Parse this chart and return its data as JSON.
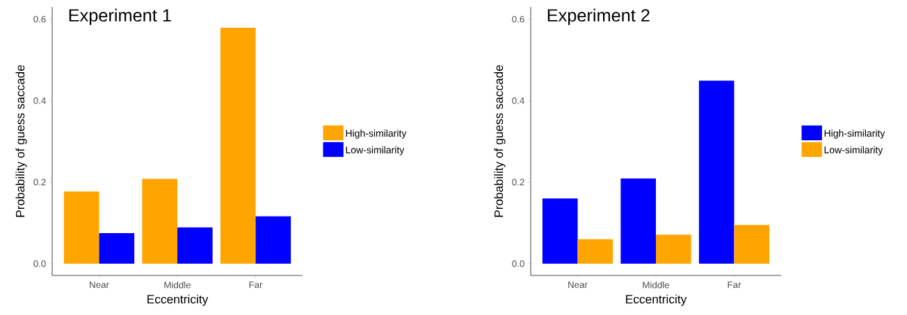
{
  "chart_data": [
    {
      "type": "bar",
      "title": "Experiment 1",
      "xlabel": "Eccentricity",
      "ylabel": "Probability of guess saccade",
      "categories": [
        "Near",
        "Middle",
        "Far"
      ],
      "series": [
        {
          "name": "High-similarity",
          "color": "#ffa500",
          "values": [
            0.177,
            0.208,
            0.579
          ]
        },
        {
          "name": "Low-similarity",
          "color": "#0000ff",
          "values": [
            0.075,
            0.089,
            0.116
          ]
        }
      ],
      "ylim": [
        -0.029,
        0.63
      ],
      "yticks": [
        {
          "value": 0,
          "label": "0.0"
        },
        {
          "value": 0.2,
          "label": "0.2"
        },
        {
          "value": 0.4,
          "label": "0.4"
        },
        {
          "value": 0.6,
          "label": "0.6"
        }
      ],
      "legend": "right"
    },
    {
      "type": "bar",
      "title": "Experiment 2",
      "xlabel": "Eccentricity",
      "ylabel": "Probability of guess saccade",
      "categories": [
        "Near",
        "Middle",
        "Far"
      ],
      "series": [
        {
          "name": "High-similarity",
          "color": "#0000ff",
          "values": [
            0.16,
            0.209,
            0.449
          ]
        },
        {
          "name": "Low-similarity",
          "color": "#ffa500",
          "values": [
            0.06,
            0.071,
            0.095
          ]
        }
      ],
      "ylim": [
        -0.029,
        0.63
      ],
      "yticks": [
        {
          "value": 0,
          "label": "0.0"
        },
        {
          "value": 0.2,
          "label": "0.2"
        },
        {
          "value": 0.4,
          "label": "0.4"
        },
        {
          "value": 0.6,
          "label": "0.6"
        }
      ],
      "legend": "right"
    }
  ]
}
